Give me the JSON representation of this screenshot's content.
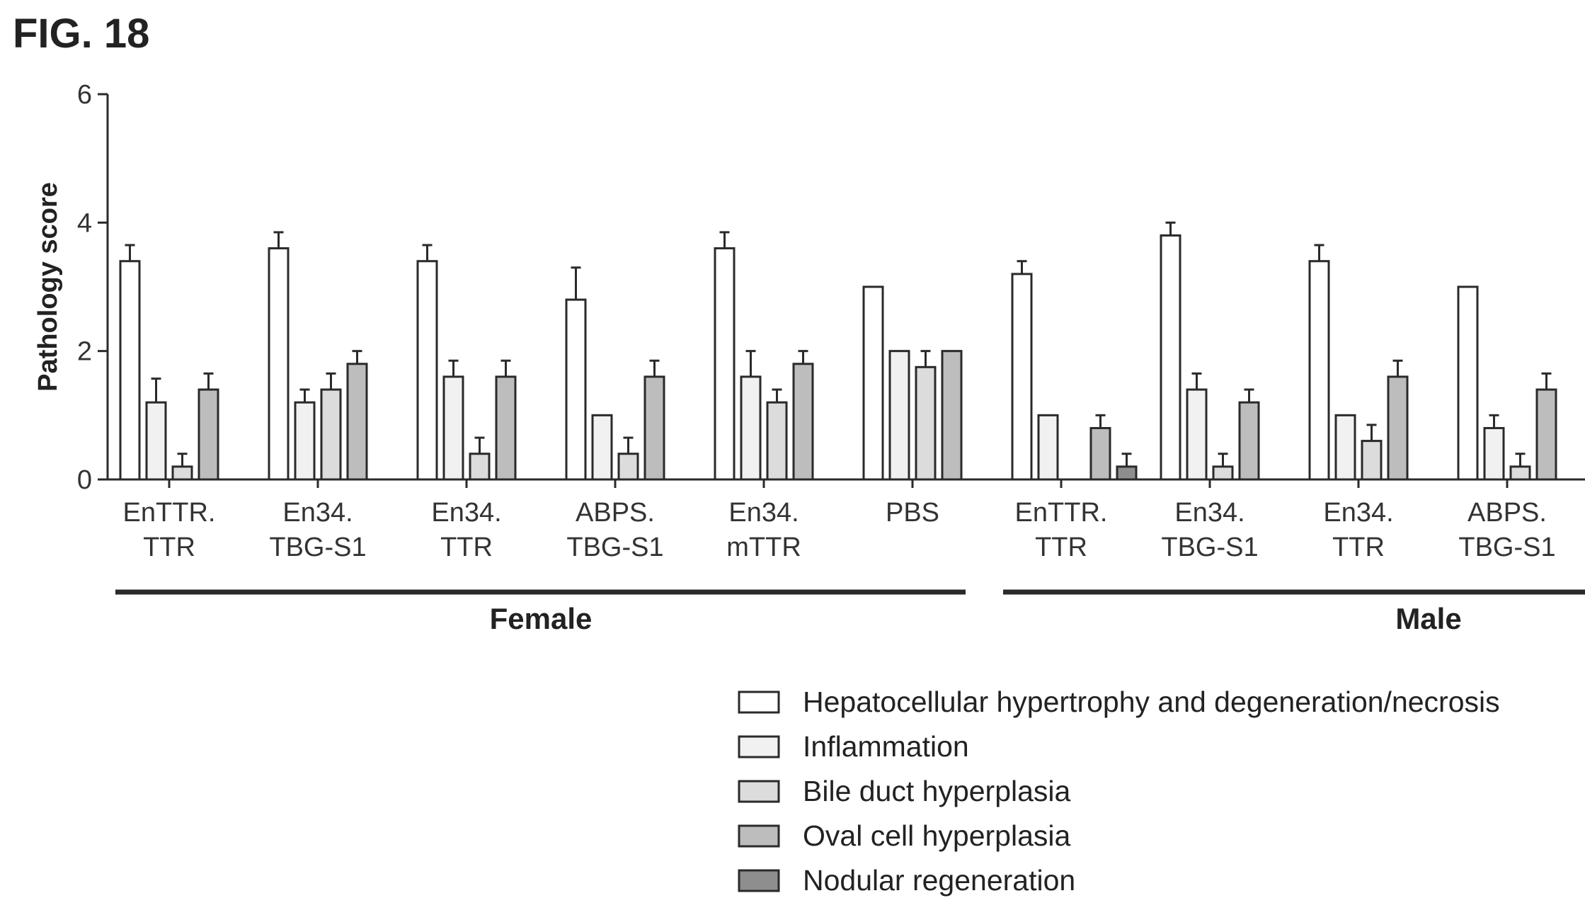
{
  "figure_label": "FIG. 18",
  "colors": {
    "hepatocellular": "#ffffff",
    "inflammation": "#f1f1f1",
    "bile_duct": "#dcdcdc",
    "oval_cell": "#bdbdbd",
    "nodular": "#8e8e8e",
    "stroke": "#2a2a2a"
  },
  "chart_data": {
    "type": "bar",
    "title": "",
    "xlabel": "",
    "ylabel": "Pathology score",
    "ylim": [
      0,
      6
    ],
    "yticks": [
      "0",
      "2",
      "4",
      "6"
    ],
    "error_bars": true,
    "legend_position": "bottom-right",
    "categories": [
      [
        "EnTTR.",
        "TTR"
      ],
      [
        "En34.",
        "TBG-S1"
      ],
      [
        "En34.",
        "TTR"
      ],
      [
        "ABPS.",
        "TBG-S1"
      ],
      [
        "En34.",
        "mTTR"
      ],
      [
        "PBS"
      ],
      [
        "EnTTR.",
        "TTR"
      ],
      [
        "En34.",
        "TBG-S1"
      ],
      [
        "En34.",
        "TTR"
      ],
      [
        "ABPS.",
        "TBG-S1"
      ]
    ],
    "groups": [
      {
        "name": "Female",
        "categories": [
          0,
          1,
          2,
          3,
          4,
          5
        ]
      },
      {
        "name": "Male",
        "categories": [
          6,
          7,
          8,
          9
        ]
      }
    ],
    "series": [
      {
        "name": "Hepatocellular hypertrophy and degeneration/necrosis",
        "color_key": "hepatocellular",
        "values": [
          3.4,
          3.6,
          3.4,
          2.8,
          3.6,
          3.0,
          3.2,
          3.8,
          3.4,
          3.0
        ],
        "errors": [
          0.25,
          0.25,
          0.25,
          0.5,
          0.25,
          0,
          0.2,
          0.2,
          0.25,
          0
        ]
      },
      {
        "name": "Inflammation",
        "color_key": "inflammation",
        "values": [
          1.2,
          1.2,
          1.6,
          1.0,
          1.6,
          2.0,
          1.0,
          1.4,
          1.0,
          0.8
        ],
        "errors": [
          0.37,
          0.2,
          0.25,
          0,
          0.4,
          0,
          0,
          0.25,
          0,
          0.2
        ]
      },
      {
        "name": "Bile duct hyperplasia",
        "color_key": "bile_duct",
        "values": [
          0.2,
          1.4,
          0.4,
          0.4,
          1.2,
          1.75,
          0,
          0.2,
          0.6,
          0.2
        ],
        "errors": [
          0.2,
          0.25,
          0.25,
          0.25,
          0.2,
          0.25,
          0,
          0.2,
          0.25,
          0.2
        ]
      },
      {
        "name": "Oval cell hyperplasia",
        "color_key": "oval_cell",
        "values": [
          1.4,
          1.8,
          1.6,
          1.6,
          1.8,
          2.0,
          0.8,
          1.2,
          1.6,
          1.4
        ],
        "errors": [
          0.25,
          0.2,
          0.25,
          0.25,
          0.2,
          0,
          0.2,
          0.2,
          0.25,
          0.25
        ]
      },
      {
        "name": "Nodular regeneration",
        "color_key": "nodular",
        "values": [
          null,
          null,
          null,
          null,
          null,
          null,
          0.2,
          null,
          null,
          null
        ],
        "errors": [
          null,
          null,
          null,
          null,
          null,
          null,
          0.2,
          null,
          null,
          null
        ]
      }
    ]
  },
  "legend": [
    "Hepatocellular hypertrophy and degeneration/necrosis",
    "Inflammation",
    "Bile duct hyperplasia",
    "Oval cell hyperplasia",
    "Nodular regeneration"
  ]
}
